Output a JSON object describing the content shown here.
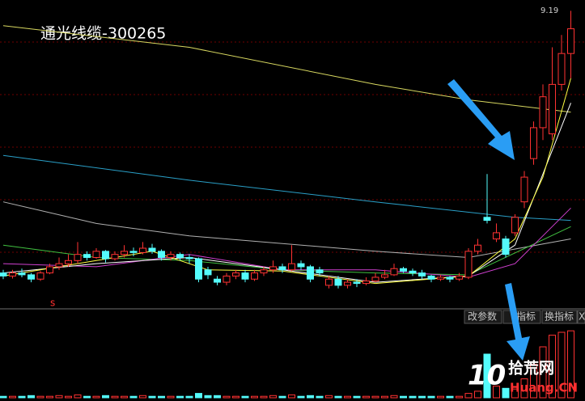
{
  "chart_data": {
    "type": "candlestick",
    "title": "通光线缆-300265",
    "marker": "s",
    "up_color": "#ff3232",
    "down_color": "#54fcfc",
    "ylim": [
      4.5,
      9.3
    ],
    "open": [
      4.95,
      4.9,
      4.95,
      4.92,
      4.85,
      4.95,
      5.05,
      5.1,
      5.15,
      5.25,
      5.2,
      5.3,
      5.18,
      5.25,
      5.3,
      5.28,
      5.35,
      5.3,
      5.2,
      5.25,
      5.2,
      5.18,
      5.0,
      4.85,
      4.8,
      4.9,
      4.95,
      4.85,
      4.95,
      5.0,
      5.05,
      5.0,
      5.1,
      5.05,
      5.0,
      4.75,
      4.85,
      4.75,
      4.8,
      4.78,
      4.82,
      4.88,
      4.92,
      5.02,
      4.98,
      4.95,
      4.9,
      4.85,
      4.88,
      4.85,
      4.88,
      5.3,
      5.85,
      5.5,
      5.5,
      5.6,
      6.1,
      6.8,
      7.3,
      7.2,
      8.0,
      8.5
    ],
    "close": [
      4.9,
      4.95,
      4.92,
      4.85,
      4.95,
      5.05,
      5.1,
      5.15,
      5.25,
      5.2,
      5.3,
      5.18,
      5.25,
      5.3,
      5.28,
      5.35,
      5.3,
      5.2,
      5.25,
      5.2,
      5.18,
      4.85,
      4.92,
      4.8,
      4.9,
      4.95,
      4.85,
      4.95,
      5.0,
      5.05,
      5.0,
      5.1,
      5.05,
      4.85,
      4.95,
      4.85,
      4.75,
      4.8,
      4.78,
      4.82,
      4.88,
      4.92,
      5.02,
      4.98,
      4.95,
      4.9,
      4.85,
      4.88,
      4.85,
      4.9,
      5.3,
      5.4,
      5.8,
      5.6,
      5.25,
      5.85,
      6.5,
      7.3,
      7.8,
      8.0,
      8.5,
      8.9
    ],
    "high": [
      5.0,
      5.0,
      5.02,
      4.95,
      4.98,
      5.1,
      5.2,
      5.25,
      5.45,
      5.3,
      5.35,
      5.32,
      5.3,
      5.4,
      5.36,
      5.45,
      5.42,
      5.33,
      5.3,
      5.28,
      5.25,
      5.2,
      5.05,
      4.9,
      4.95,
      5.0,
      5.0,
      5.0,
      5.05,
      5.15,
      5.1,
      5.4,
      5.15,
      5.08,
      5.05,
      4.9,
      4.9,
      4.85,
      4.85,
      4.88,
      4.95,
      5.0,
      5.1,
      5.05,
      5.02,
      5.0,
      4.92,
      4.92,
      4.9,
      4.95,
      5.35,
      5.5,
      6.55,
      5.75,
      5.55,
      5.9,
      6.6,
      7.4,
      8.0,
      8.6,
      8.8,
      9.19
    ],
    "low": [
      4.85,
      4.86,
      4.88,
      4.8,
      4.82,
      4.93,
      5.0,
      5.05,
      5.1,
      5.15,
      5.18,
      5.12,
      5.15,
      5.2,
      5.22,
      5.25,
      5.26,
      5.15,
      5.15,
      5.15,
      5.1,
      4.8,
      4.85,
      4.75,
      4.75,
      4.85,
      4.8,
      4.82,
      4.9,
      4.95,
      4.95,
      4.98,
      5.0,
      4.8,
      4.9,
      4.7,
      4.7,
      4.7,
      4.72,
      4.75,
      4.8,
      4.85,
      4.9,
      4.95,
      4.9,
      4.85,
      4.8,
      4.82,
      4.8,
      4.82,
      4.85,
      5.25,
      5.75,
      5.45,
      5.2,
      5.55,
      6.0,
      6.7,
      7.1,
      7.1,
      7.9,
      8.1
    ],
    "series": [
      {
        "color": "#d8d860",
        "x": [
          0,
          20,
          40,
          50,
          61
        ],
        "values": [
          8.95,
          8.6,
          8.0,
          7.75,
          7.55
        ]
      },
      {
        "color": "#2aa0c8",
        "x": [
          0,
          20,
          40,
          55,
          61
        ],
        "values": [
          6.85,
          6.45,
          6.1,
          5.85,
          5.8
        ]
      },
      {
        "color": "#b0b0b0",
        "x": [
          0,
          10,
          20,
          40,
          50,
          61
        ],
        "values": [
          6.1,
          5.75,
          5.55,
          5.3,
          5.2,
          5.5
        ]
      },
      {
        "color": "#40c040",
        "x": [
          0,
          10,
          20,
          30,
          40,
          50,
          61
        ],
        "values": [
          5.4,
          5.2,
          5.15,
          5.0,
          4.95,
          4.92,
          5.7
        ]
      },
      {
        "color": "#d040d0",
        "x": [
          0,
          10,
          20,
          30,
          40,
          50,
          55,
          61
        ],
        "values": [
          5.1,
          5.05,
          5.25,
          5.0,
          5.0,
          4.88,
          5.1,
          6.0
        ]
      },
      {
        "color": "#ffffff",
        "x": [
          0,
          10,
          20,
          30,
          40,
          50,
          55,
          61
        ],
        "values": [
          4.95,
          5.1,
          5.2,
          5.0,
          4.8,
          4.9,
          5.4,
          7.7
        ]
      },
      {
        "color": "#ffff40",
        "x": [
          0,
          10,
          16,
          22,
          30,
          40,
          50,
          55,
          58,
          61
        ],
        "values": [
          4.9,
          5.15,
          5.3,
          5.0,
          4.98,
          4.78,
          4.9,
          5.5,
          6.5,
          8.1
        ]
      }
    ],
    "volume": {
      "ylim": [
        0,
        100
      ],
      "values": [
        2,
        2,
        2,
        3,
        2,
        2,
        3,
        2,
        4,
        2,
        2,
        3,
        2,
        2,
        2,
        3,
        2,
        2,
        2,
        2,
        2,
        6,
        3,
        3,
        2,
        2,
        2,
        2,
        2,
        3,
        2,
        4,
        2,
        3,
        2,
        3,
        2,
        2,
        2,
        2,
        2,
        2,
        3,
        2,
        2,
        2,
        2,
        2,
        2,
        2,
        6,
        9,
        60,
        16,
        13,
        12,
        26,
        46,
        70,
        86,
        90,
        92
      ]
    }
  },
  "toolbar": {
    "buttons": [
      "改参数",
      "指标",
      "换指标",
      "X"
    ]
  },
  "watermark": {
    "number": "10",
    "site": "拾荒网",
    "domain": "Huang.CN"
  }
}
